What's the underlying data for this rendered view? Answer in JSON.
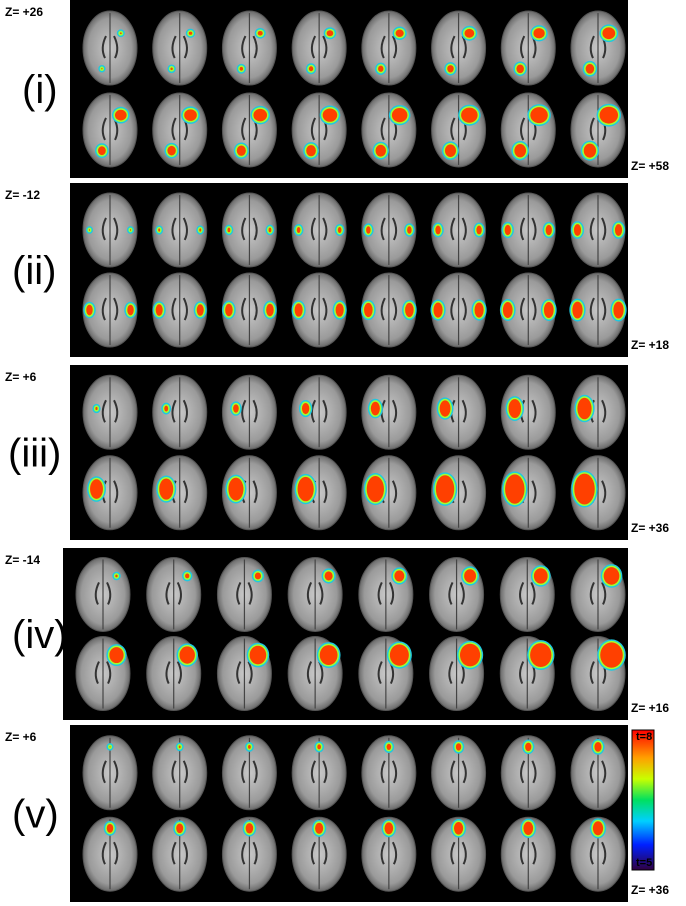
{
  "panels": [
    {
      "label": "(i)",
      "z_top": "Z= +26",
      "z_bottom": "Z= +58"
    },
    {
      "label": "(ii)",
      "z_top": "Z= -12",
      "z_bottom": "Z= +18"
    },
    {
      "label": "(iii)",
      "z_top": "Z= +6",
      "z_bottom": "Z= +36"
    },
    {
      "label": "(iv)",
      "z_top": "Z= -14",
      "z_bottom": "Z= +16"
    },
    {
      "label": "(v)",
      "z_top": "Z= +6",
      "z_bottom": "Z= +36"
    }
  ],
  "colorbar": {
    "max_label": "t=8",
    "min_label": "t=5"
  }
}
